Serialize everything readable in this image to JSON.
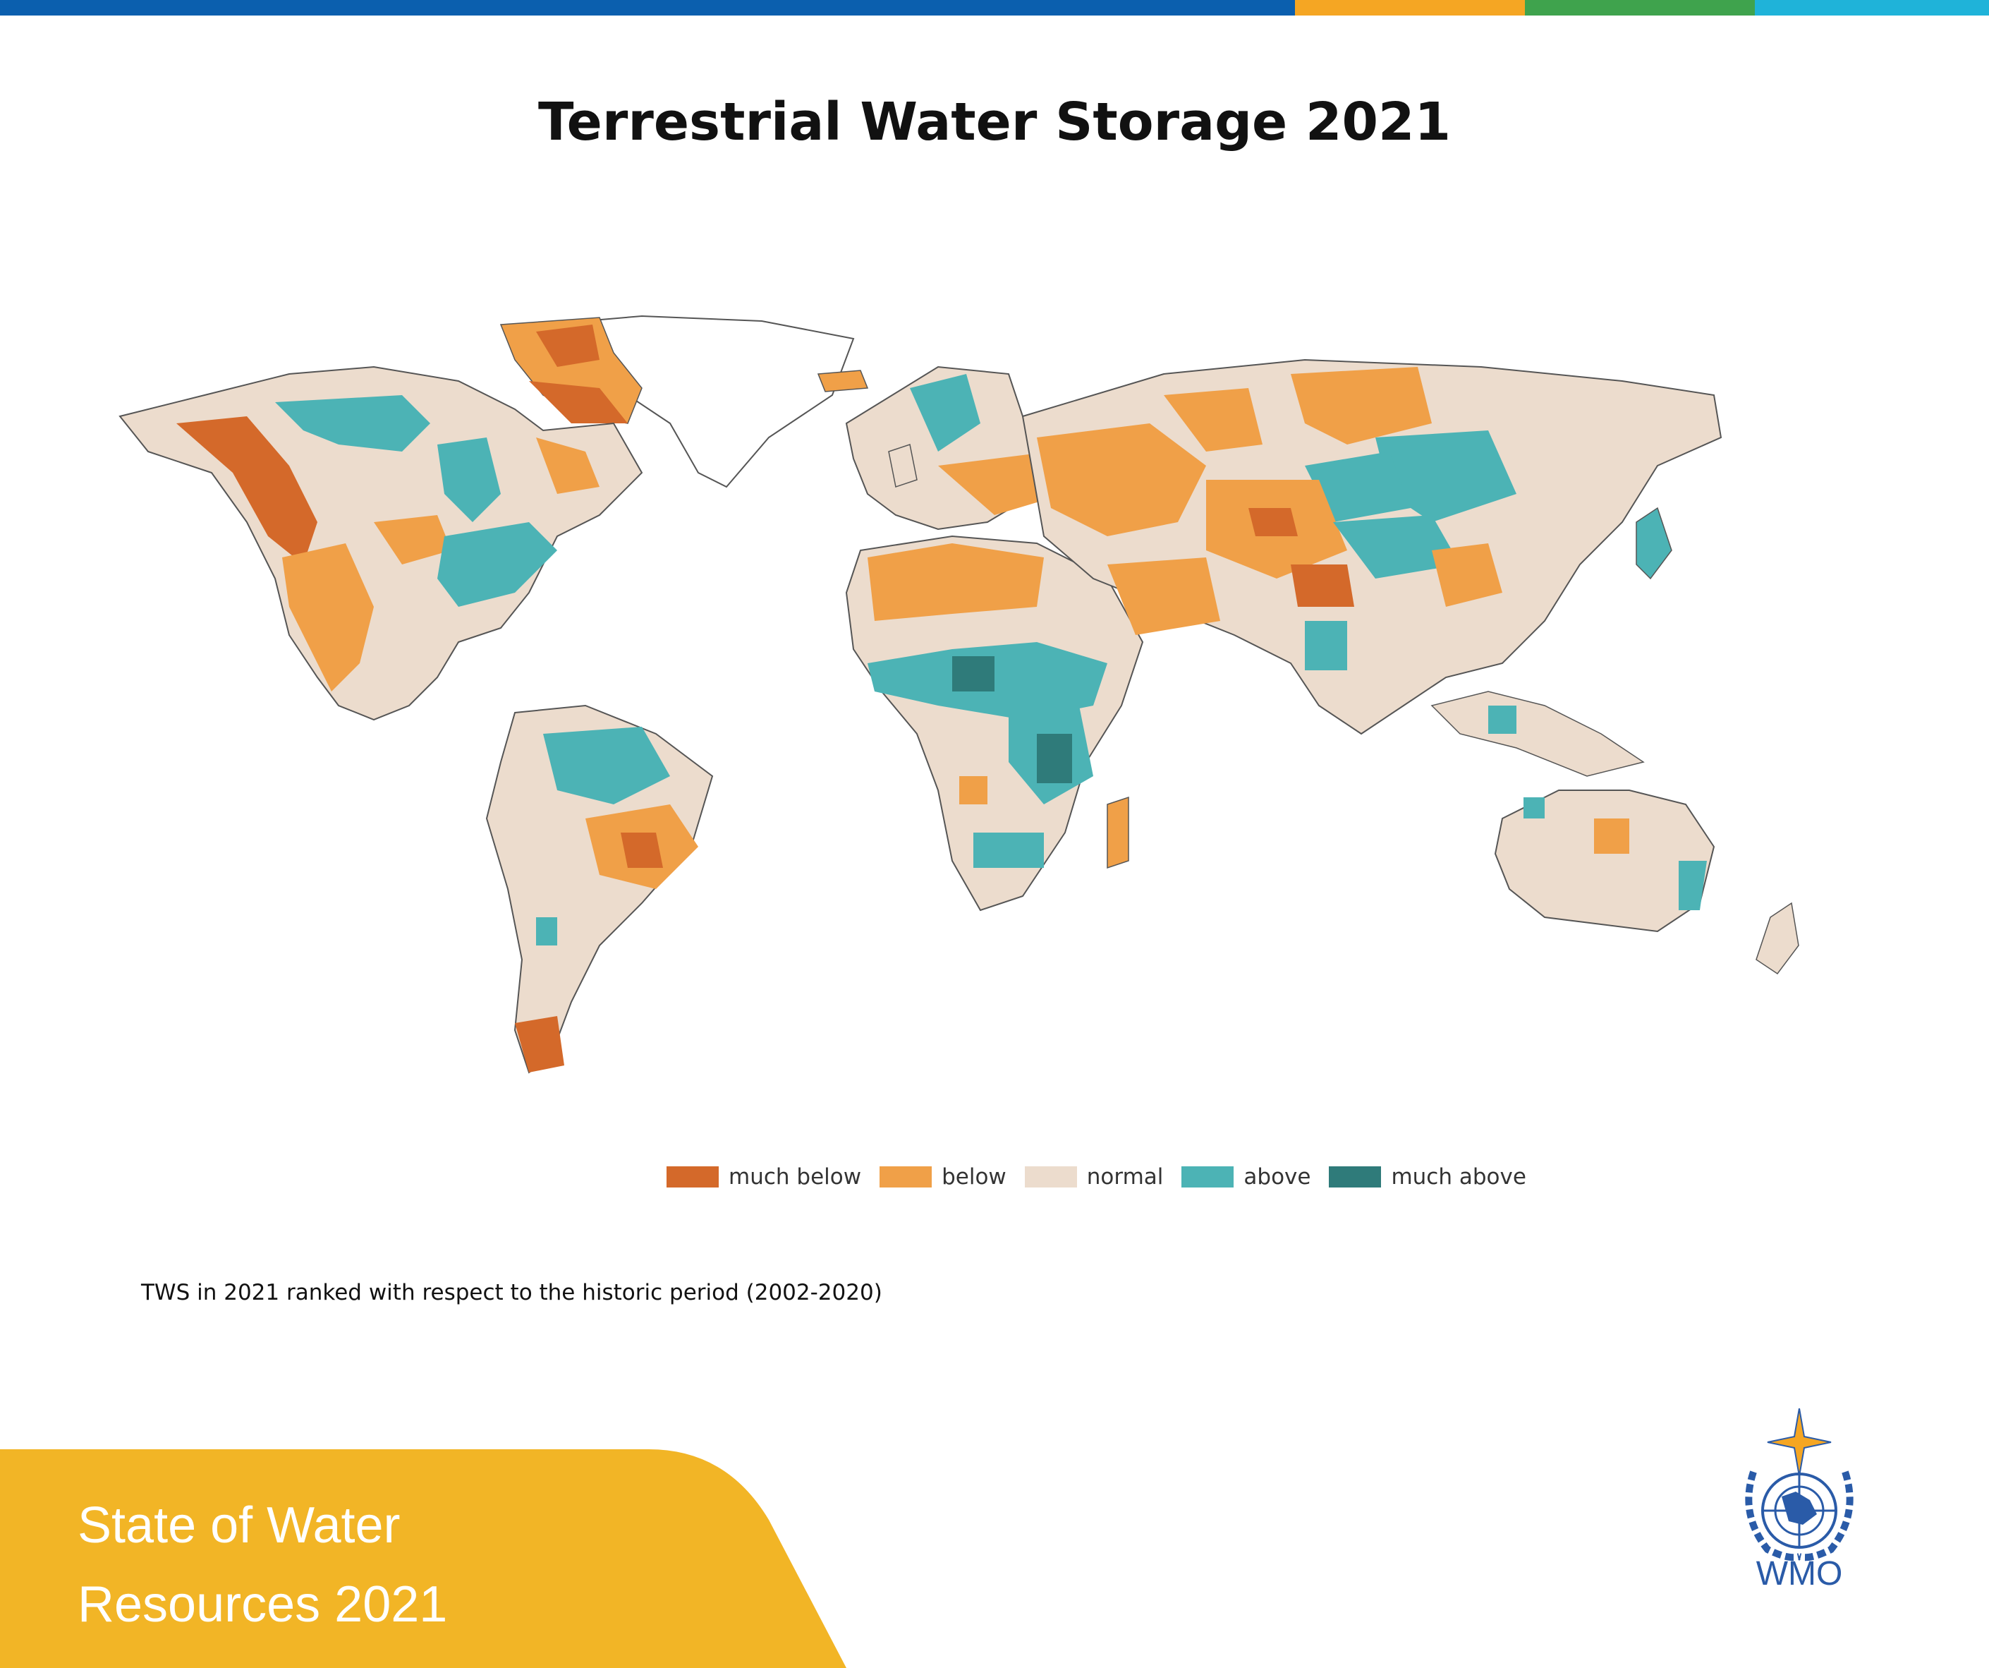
{
  "colors": {
    "topbar": [
      "#0b5fae",
      "#f5a623",
      "#3fa34d",
      "#1fb3d9"
    ],
    "much_below": "#d4692a",
    "below": "#f0a048",
    "normal": "#ecdccd",
    "above": "#4cb3b5",
    "much_above": "#2f7b7a",
    "footer": "#f2b526",
    "wmo_blue": "#2a5ba8"
  },
  "title": "Terrestrial Water Storage 2021",
  "legend": [
    {
      "label": "much below",
      "color": "#d4692a"
    },
    {
      "label": "below",
      "color": "#f0a048"
    },
    {
      "label": "normal",
      "color": "#ecdccd"
    },
    {
      "label": "above",
      "color": "#4cb3b5"
    },
    {
      "label": "much above",
      "color": "#2f7b7a"
    }
  ],
  "caption": "TWS in 2021 ranked with respect to the historic period (2002-2020)",
  "footer": {
    "line1": "State of Water",
    "line2": "Resources 2021"
  },
  "logo": {
    "text": "WMO",
    "icon": "wmo-emblem-icon"
  }
}
